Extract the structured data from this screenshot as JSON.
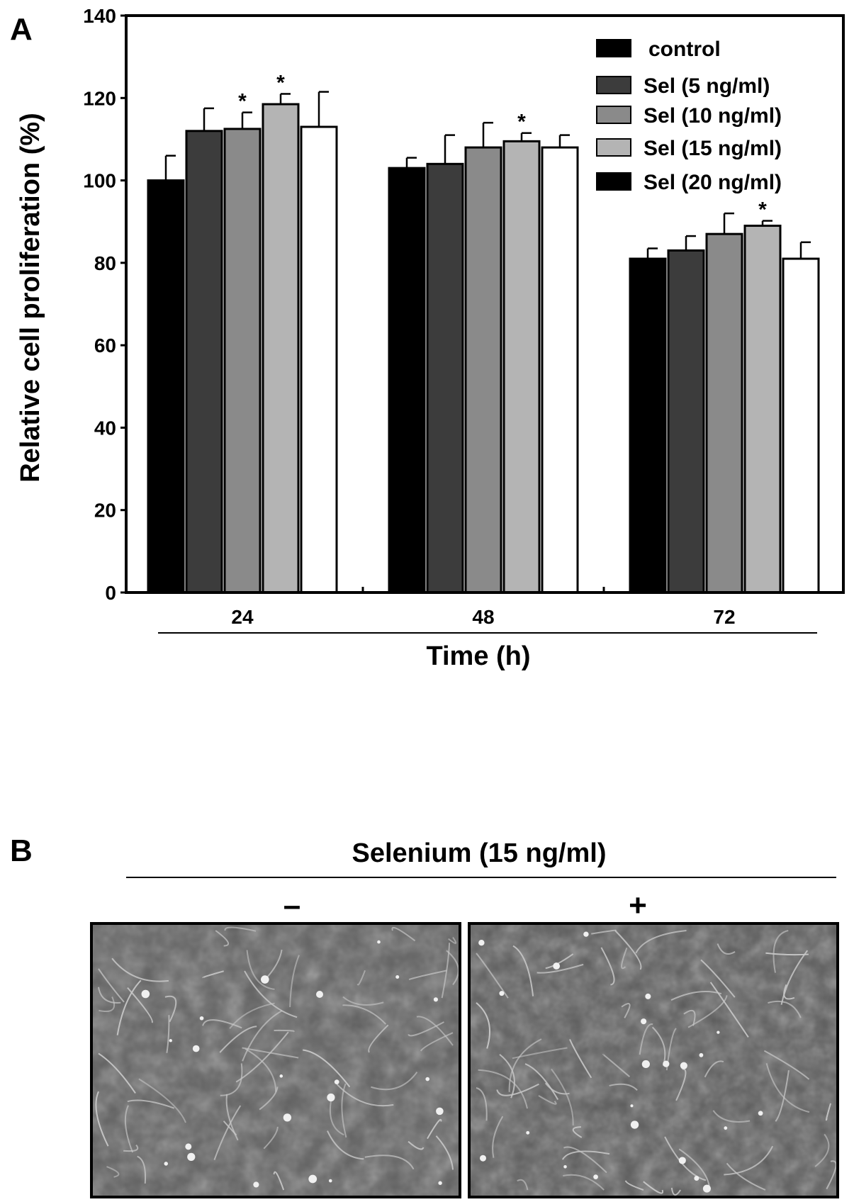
{
  "panel_a_label": "A",
  "panel_b_label": "B",
  "chart_data": {
    "type": "bar",
    "title": "",
    "ylabel": "Relative cell proliferation (%)",
    "xlabel": "Time (h)",
    "ylim": [
      0,
      140
    ],
    "yticks": [
      0,
      20,
      40,
      60,
      80,
      100,
      120,
      140
    ],
    "categories": [
      "24",
      "48",
      "72"
    ],
    "grid": false,
    "legend_position": "top-right",
    "series": [
      {
        "name": "control",
        "color": "#000000",
        "values": [
          100,
          103,
          81
        ],
        "errors": [
          6,
          2.5,
          2.5
        ],
        "significant": [
          false,
          false,
          false
        ]
      },
      {
        "name": "Sel (5 ng/ml)",
        "color": "#3c3c3c",
        "values": [
          112,
          104,
          83
        ],
        "errors": [
          5.5,
          7,
          3.5
        ],
        "significant": [
          false,
          false,
          false
        ]
      },
      {
        "name": "Sel (10 ng/ml)",
        "color": "#8a8a8a",
        "values": [
          112.5,
          108,
          87
        ],
        "errors": [
          4,
          6,
          5
        ],
        "significant": [
          true,
          false,
          false
        ]
      },
      {
        "name": "Sel (15 ng/ml)",
        "color": "#b4b4b4",
        "values": [
          118.5,
          109.5,
          89
        ],
        "errors": [
          2.5,
          2,
          1.2
        ],
        "significant": [
          true,
          true,
          true
        ]
      },
      {
        "name": "Sel (20 ng/ml)",
        "color": "#000000",
        "bar_fill": "#ffffff",
        "values": [
          113,
          108,
          81
        ],
        "errors": [
          8.5,
          3,
          4
        ],
        "significant": [
          false,
          false,
          false
        ]
      }
    ],
    "significance_marker": "*"
  },
  "panel_b": {
    "title": "Selenium (15 ng/ml)",
    "conditions": [
      {
        "sign": "–",
        "image": "micrograph-without-selenium"
      },
      {
        "sign": "+",
        "image": "micrograph-with-selenium"
      }
    ]
  }
}
